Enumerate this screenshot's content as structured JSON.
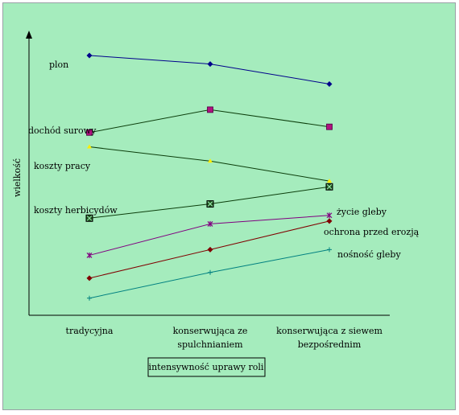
{
  "chart_data": {
    "type": "line",
    "xlabel": "intensywność uprawy roli",
    "ylabel": "wielkość",
    "categories": [
      [
        "tradycyjna"
      ],
      [
        "konserwująca ze",
        "spulchnianiem"
      ],
      [
        "konserwująca z siewem",
        "bezpośrednim"
      ]
    ],
    "ylim": [
      0,
      100
    ],
    "grid": false,
    "legend": "inline labels",
    "series": [
      {
        "name": "plon",
        "values": [
          91,
          88,
          81
        ],
        "color": "#00008b",
        "marker": "diamond"
      },
      {
        "name": "dochód surowy",
        "values": [
          64,
          72,
          66
        ],
        "color": "#0b3d0b",
        "marker": "square-magenta"
      },
      {
        "name": "koszty pracy",
        "values": [
          59,
          54,
          47
        ],
        "color": "#0b3d0b",
        "marker": "triangle-yellow"
      },
      {
        "name": "koszty herbicydów",
        "values": [
          34,
          39,
          45
        ],
        "color": "#0b3d0b",
        "marker": "box-x"
      },
      {
        "name": "życie gleby",
        "values": [
          21,
          32,
          35
        ],
        "color": "#800080",
        "marker": "star"
      },
      {
        "name": "ochrona przed erozją",
        "values": [
          13,
          23,
          33
        ],
        "color": "#800000",
        "marker": "diamond"
      },
      {
        "name": "nośność gleby",
        "values": [
          6,
          15,
          23
        ],
        "color": "#008080",
        "marker": "plus"
      }
    ]
  }
}
